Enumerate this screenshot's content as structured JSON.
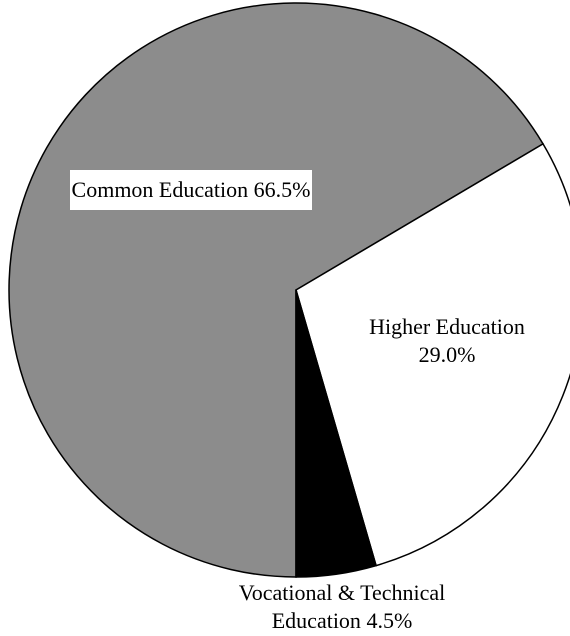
{
  "chart_data": {
    "type": "pie",
    "categories": [
      "Common Education",
      "Higher Education",
      "Vocational & Technical Education"
    ],
    "values": [
      66.5,
      29.0,
      4.5
    ],
    "value_labels": [
      "66.5%",
      "29.0%",
      "4.5%"
    ],
    "colors": [
      "#8c8c8c",
      "#ffffff",
      "#000000"
    ]
  }
}
